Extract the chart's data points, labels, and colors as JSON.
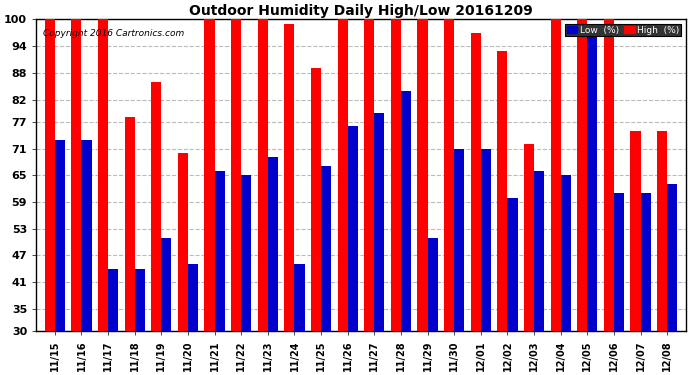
{
  "title": "Outdoor Humidity Daily High/Low 20161209",
  "copyright": "Copyright 2016 Cartronics.com",
  "dates": [
    "11/15",
    "11/16",
    "11/17",
    "11/18",
    "11/19",
    "11/20",
    "11/21",
    "11/22",
    "11/23",
    "11/24",
    "11/25",
    "11/26",
    "11/27",
    "11/28",
    "11/29",
    "11/30",
    "12/01",
    "12/02",
    "12/03",
    "12/04",
    "12/05",
    "12/06",
    "12/07",
    "12/08"
  ],
  "high": [
    100,
    100,
    100,
    78,
    86,
    70,
    100,
    100,
    100,
    99,
    89,
    100,
    100,
    100,
    100,
    100,
    97,
    93,
    72,
    100,
    100,
    100,
    75,
    75
  ],
  "low": [
    73,
    73,
    44,
    44,
    51,
    45,
    66,
    65,
    69,
    45,
    67,
    76,
    79,
    84,
    51,
    71,
    71,
    60,
    66,
    65,
    99,
    61,
    61,
    63
  ],
  "high_color": "#ff0000",
  "low_color": "#0000cc",
  "bg_color": "#ffffff",
  "grid_color": "#bbbbbb",
  "ylim_min": 30,
  "ylim_max": 100,
  "yticks": [
    30,
    35,
    41,
    47,
    53,
    59,
    65,
    71,
    77,
    82,
    88,
    94,
    100
  ],
  "legend_low_label": "Low  (%)",
  "legend_high_label": "High  (%)"
}
